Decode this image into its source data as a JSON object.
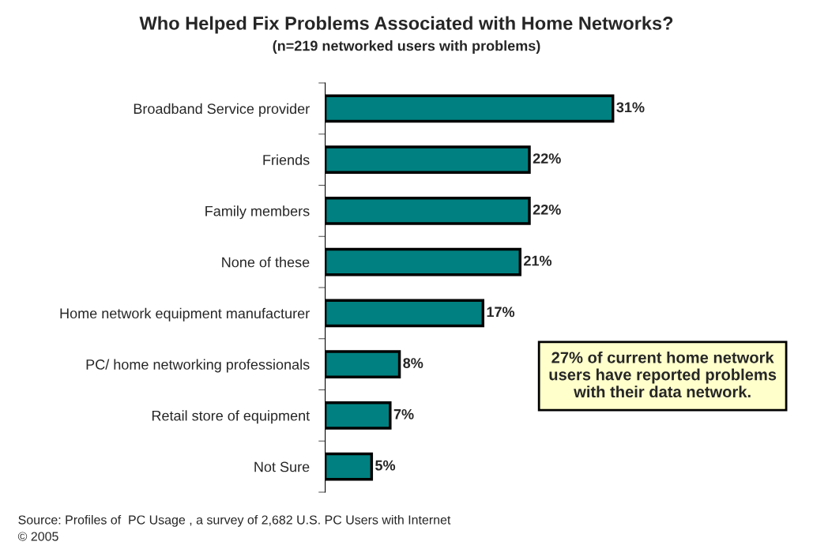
{
  "chart_data": {
    "type": "bar",
    "orientation": "horizontal",
    "title": "Who Helped Fix Problems Associated with Home Networks?",
    "subtitle": "(n=219 networked users with problems)",
    "categories": [
      "Broadband Service provider",
      "Friends",
      "Family members",
      "None of these",
      "Home network equipment manufacturer",
      "PC/ home networking professionals",
      "Retail store of equipment",
      "Not Sure"
    ],
    "values": [
      31,
      22,
      22,
      21,
      17,
      8,
      7,
      5
    ],
    "value_labels": [
      "31%",
      "22%",
      "22%",
      "21%",
      "17%",
      "8%",
      "7%",
      "5%"
    ],
    "color": "#008080",
    "annotations": [
      "27% of current home network users have reported problems with their data network.",
      "Source: Profiles of  PC Usage , a survey of 2,682 U.S. PC Users with Internet",
      "© 2005"
    ]
  }
}
